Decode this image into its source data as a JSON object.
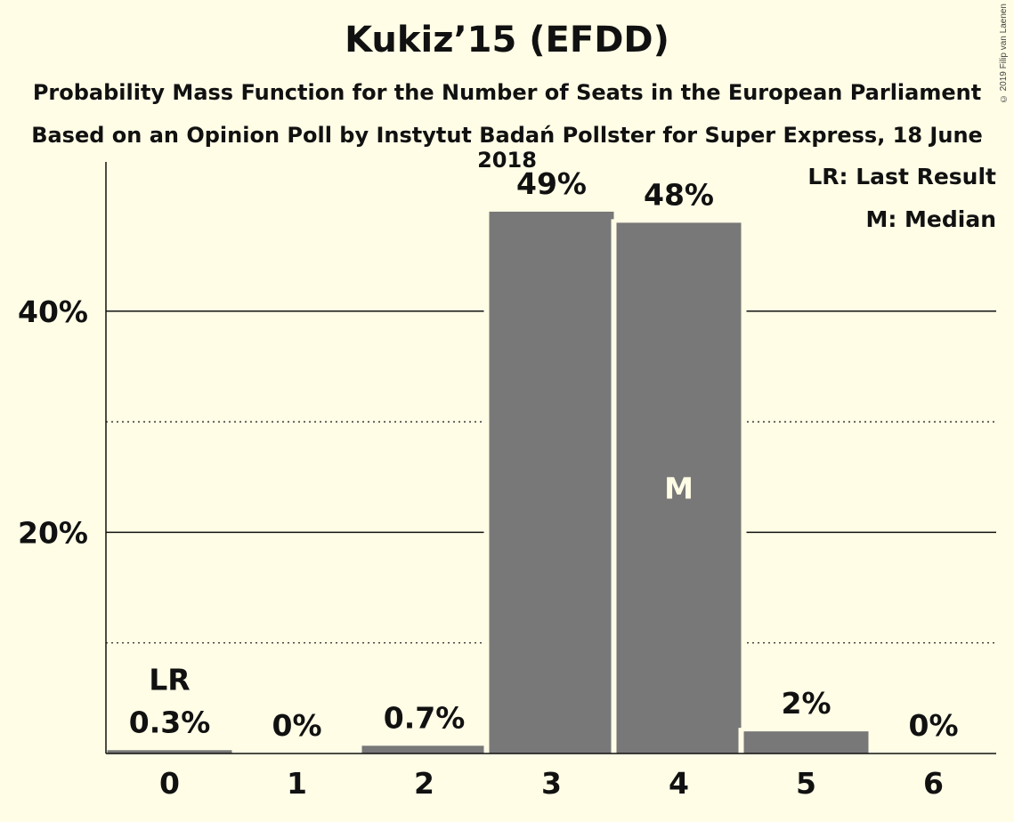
{
  "title": "Kukiz’15 (EFDD)",
  "subtitle": "Probability Mass Function for the Number of Seats in the European Parliament",
  "subtitle2": "Based on an Opinion Poll by Instytut Badań Pollster for Super Express, 18 June 2018",
  "copyright": "© 2019 Filip van Laenen",
  "legend": {
    "last_result": "LR: Last Result",
    "median": "M: Median"
  },
  "chart_data": {
    "type": "bar",
    "categories": [
      "0",
      "1",
      "2",
      "3",
      "4",
      "5",
      "6"
    ],
    "values": [
      0.3,
      0,
      0.7,
      49,
      48,
      2,
      0
    ],
    "value_labels": [
      "0.3%",
      "0%",
      "0.7%",
      "49%",
      "48%",
      "2%",
      "0%"
    ],
    "ylim": [
      0,
      53.5
    ],
    "y_ticks": [
      20,
      40
    ],
    "y_tick_labels": [
      "20%",
      "40%"
    ],
    "y_minor_ticks": [
      10,
      30
    ],
    "grid": true,
    "last_result_category": "0",
    "last_result_label": "LR",
    "median_category": "4",
    "median_label": "M",
    "colors": {
      "bar": "#787878",
      "background": "#fffde6",
      "text": "#111111",
      "median_text": "#fffde6"
    }
  }
}
